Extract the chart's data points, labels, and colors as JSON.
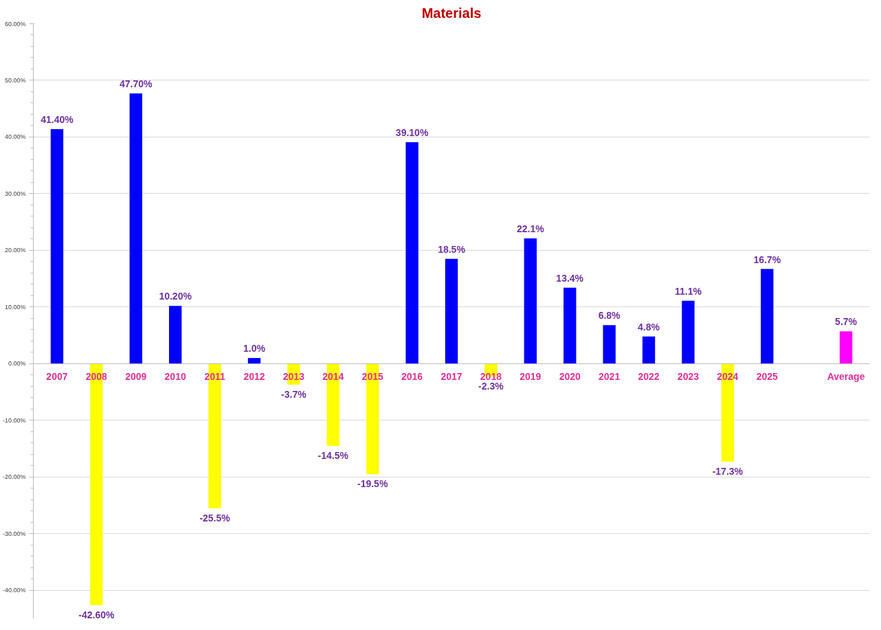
{
  "chart_data": {
    "type": "bar",
    "title": "Materials",
    "categories": [
      "2007",
      "2008",
      "2009",
      "2010",
      "2011",
      "2012",
      "2013",
      "2014",
      "2015",
      "2016",
      "2017",
      "2018",
      "2019",
      "2020",
      "2021",
      "2022",
      "2023",
      "2024",
      "2025",
      null,
      "Average"
    ],
    "values": [
      41.4,
      -42.6,
      47.7,
      10.2,
      -25.5,
      1.0,
      -3.7,
      -14.5,
      -19.5,
      39.1,
      18.5,
      -2.3,
      22.1,
      13.4,
      6.8,
      4.8,
      11.1,
      -17.3,
      16.7,
      null,
      5.7
    ],
    "colors": [
      "#0000ff",
      "#ffff00",
      "#0000ff",
      "#0000ff",
      "#ffff00",
      "#0000ff",
      "#ffff00",
      "#ffff00",
      "#ffff00",
      "#0000ff",
      "#0000ff",
      "#ffff00",
      "#0000ff",
      "#0000ff",
      "#0000ff",
      "#0000ff",
      "#0000ff",
      "#ffff00",
      "#0000ff",
      null,
      "#ff00ff"
    ],
    "value_labels": [
      "41.40%",
      "-42.60%",
      "47.70%",
      "10.20%",
      "-25.5%",
      "1.0%",
      "-3.7%",
      "-14.5%",
      "-19.5%",
      "39.10%",
      "18.5%",
      "-2.3%",
      "22.1%",
      "13.4%",
      "6.8%",
      "4.8%",
      "11.1%",
      "-17.3%",
      "16.7%",
      null,
      "5.7%"
    ],
    "ylim": [
      -45,
      60
    ],
    "yticks": [
      {
        "value": -40,
        "label": "-40.00%"
      },
      {
        "value": -30,
        "label": "-30.00%"
      },
      {
        "value": -20,
        "label": "-20.00%"
      },
      {
        "value": -10,
        "label": "-10.00%"
      },
      {
        "value": 0,
        "label": "0.00%"
      },
      {
        "value": 10,
        "label": "10.00%"
      },
      {
        "value": 20,
        "label": "20.00%"
      },
      {
        "value": 30,
        "label": "30.00%"
      },
      {
        "value": 40,
        "label": "40.00%"
      },
      {
        "value": 50,
        "label": "50.00%"
      },
      {
        "value": 60,
        "label": "60.00%"
      }
    ],
    "grid": "y"
  }
}
